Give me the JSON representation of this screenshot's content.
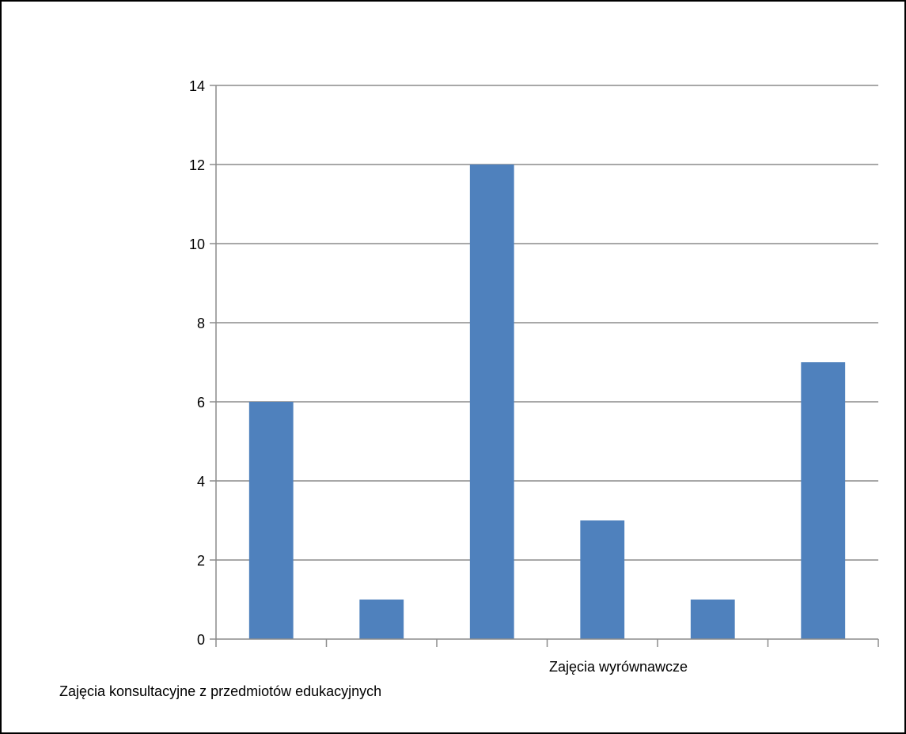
{
  "chart_data": {
    "type": "bar",
    "categories": [
      "Zajęcia konsultacyjne z przedmiotów edukacyjnych",
      "",
      "",
      "Zajęcia wyrównawcze",
      "",
      ""
    ],
    "values": [
      6,
      1,
      12,
      3,
      1,
      7
    ],
    "title": "",
    "xlabel": "",
    "ylabel": "",
    "ylim": [
      0,
      14
    ],
    "yticks": [
      "0",
      "2",
      "4",
      "6",
      "8",
      "10",
      "12",
      "14"
    ],
    "grid": true,
    "legend": "none",
    "bar_color": "#4f81bd",
    "grid_color": "#8c8c8c"
  }
}
